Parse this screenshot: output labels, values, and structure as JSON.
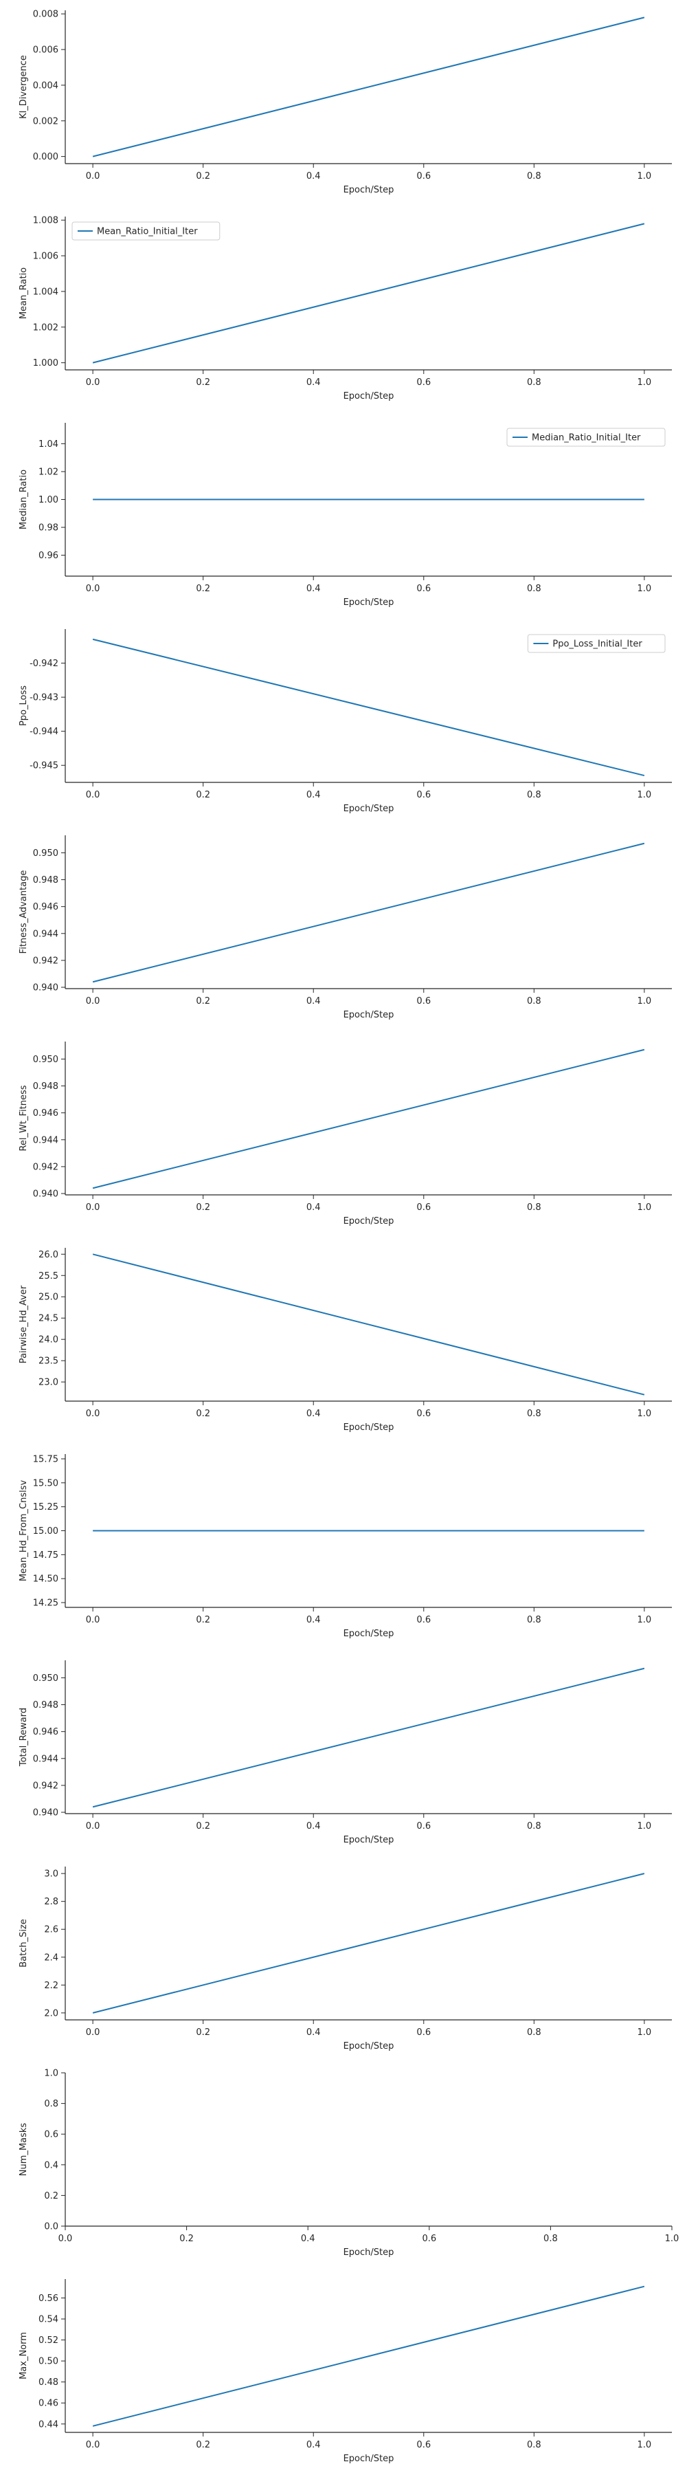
{
  "style": {
    "line_color": "#1f77b4",
    "axis_color": "#262626",
    "background": "#ffffff"
  },
  "chart_data": [
    {
      "type": "line",
      "ylabel": "Kl_Divergence",
      "xlabel": "Epoch/Step",
      "xlim": [
        -0.05,
        1.05
      ],
      "ylim": [
        -0.0004,
        0.0082
      ],
      "xticks": [
        "0.0",
        "0.2",
        "0.4",
        "0.6",
        "0.8",
        "1.0"
      ],
      "xtick_values": [
        0,
        0.2,
        0.4,
        0.6,
        0.8,
        1.0
      ],
      "yticks": [
        "0.000",
        "0.002",
        "0.004",
        "0.006",
        "0.008"
      ],
      "ytick_values": [
        0,
        0.002,
        0.004,
        0.006,
        0.008
      ],
      "series": [
        {
          "x": [
            0,
            1
          ],
          "values": [
            0.0,
            0.0078
          ]
        }
      ],
      "grid": false
    },
    {
      "type": "line",
      "ylabel": "Mean_Ratio",
      "xlabel": "Epoch/Step",
      "xlim": [
        -0.05,
        1.05
      ],
      "ylim": [
        0.9996,
        1.0082
      ],
      "xticks": [
        "0.0",
        "0.2",
        "0.4",
        "0.6",
        "0.8",
        "1.0"
      ],
      "xtick_values": [
        0,
        0.2,
        0.4,
        0.6,
        0.8,
        1.0
      ],
      "yticks": [
        "1.000",
        "1.002",
        "1.004",
        "1.006",
        "1.008"
      ],
      "ytick_values": [
        1.0,
        1.002,
        1.004,
        1.006,
        1.008
      ],
      "series": [
        {
          "name": "Mean_Ratio_Initial_Iter",
          "x": [
            0,
            1
          ],
          "values": [
            1.0,
            1.0078
          ]
        }
      ],
      "legend": "top-left",
      "grid": false
    },
    {
      "type": "line",
      "ylabel": "Median_Ratio",
      "xlabel": "Epoch/Step",
      "xlim": [
        -0.05,
        1.05
      ],
      "ylim": [
        0.945,
        1.055
      ],
      "xticks": [
        "0.0",
        "0.2",
        "0.4",
        "0.6",
        "0.8",
        "1.0"
      ],
      "xtick_values": [
        0,
        0.2,
        0.4,
        0.6,
        0.8,
        1.0
      ],
      "yticks": [
        "0.96",
        "0.98",
        "1.00",
        "1.02",
        "1.04"
      ],
      "ytick_values": [
        0.96,
        0.98,
        1.0,
        1.02,
        1.04
      ],
      "series": [
        {
          "name": "Median_Ratio_Initial_Iter",
          "x": [
            0,
            1
          ],
          "values": [
            1.0,
            1.0
          ]
        }
      ],
      "legend": "top-right",
      "grid": false
    },
    {
      "type": "line",
      "ylabel": "Ppo_Loss",
      "xlabel": "Epoch/Step",
      "xlim": [
        -0.05,
        1.05
      ],
      "ylim": [
        -0.9455,
        -0.941
      ],
      "xticks": [
        "0.0",
        "0.2",
        "0.4",
        "0.6",
        "0.8",
        "1.0"
      ],
      "xtick_values": [
        0,
        0.2,
        0.4,
        0.6,
        0.8,
        1.0
      ],
      "yticks": [
        "-0.942",
        "-0.943",
        "-0.944",
        "-0.945"
      ],
      "ytick_values": [
        -0.942,
        -0.943,
        -0.944,
        -0.945
      ],
      "series": [
        {
          "name": "Ppo_Loss_Initial_Iter",
          "x": [
            0,
            1
          ],
          "values": [
            -0.9413,
            -0.9453
          ]
        }
      ],
      "legend": "top-right",
      "grid": false
    },
    {
      "type": "line",
      "ylabel": "Fitness_Advantage",
      "xlabel": "Epoch/Step",
      "xlim": [
        -0.05,
        1.05
      ],
      "ylim": [
        0.9399,
        0.9513
      ],
      "xticks": [
        "0.0",
        "0.2",
        "0.4",
        "0.6",
        "0.8",
        "1.0"
      ],
      "xtick_values": [
        0,
        0.2,
        0.4,
        0.6,
        0.8,
        1.0
      ],
      "yticks": [
        "0.940",
        "0.942",
        "0.944",
        "0.946",
        "0.948",
        "0.950"
      ],
      "ytick_values": [
        0.94,
        0.942,
        0.944,
        0.946,
        0.948,
        0.95
      ],
      "series": [
        {
          "x": [
            0,
            1
          ],
          "values": [
            0.9404,
            0.9507
          ]
        }
      ],
      "grid": false
    },
    {
      "type": "line",
      "ylabel": "Rel_Wt_Fitness",
      "xlabel": "Epoch/Step",
      "xlim": [
        -0.05,
        1.05
      ],
      "ylim": [
        0.9399,
        0.9513
      ],
      "xticks": [
        "0.0",
        "0.2",
        "0.4",
        "0.6",
        "0.8",
        "1.0"
      ],
      "xtick_values": [
        0,
        0.2,
        0.4,
        0.6,
        0.8,
        1.0
      ],
      "yticks": [
        "0.940",
        "0.942",
        "0.944",
        "0.946",
        "0.948",
        "0.950"
      ],
      "ytick_values": [
        0.94,
        0.942,
        0.944,
        0.946,
        0.948,
        0.95
      ],
      "series": [
        {
          "x": [
            0,
            1
          ],
          "values": [
            0.9404,
            0.9507
          ]
        }
      ],
      "grid": false
    },
    {
      "type": "line",
      "ylabel": "Pairwise_Hd_Aver",
      "xlabel": "Epoch/Step",
      "xlim": [
        -0.05,
        1.05
      ],
      "ylim": [
        22.55,
        26.15
      ],
      "xticks": [
        "0.0",
        "0.2",
        "0.4",
        "0.6",
        "0.8",
        "1.0"
      ],
      "xtick_values": [
        0,
        0.2,
        0.4,
        0.6,
        0.8,
        1.0
      ],
      "yticks": [
        "23.0",
        "23.5",
        "24.0",
        "24.5",
        "25.0",
        "25.5",
        "26.0"
      ],
      "ytick_values": [
        23.0,
        23.5,
        24.0,
        24.5,
        25.0,
        25.5,
        26.0
      ],
      "series": [
        {
          "x": [
            0,
            1
          ],
          "values": [
            26.0,
            22.7
          ]
        }
      ],
      "grid": false
    },
    {
      "type": "line",
      "ylabel": "Mean_Hd_From_Cnslsv",
      "xlabel": "Epoch/Step",
      "xlim": [
        -0.05,
        1.05
      ],
      "ylim": [
        14.2,
        15.8
      ],
      "xticks": [
        "0.0",
        "0.2",
        "0.4",
        "0.6",
        "0.8",
        "1.0"
      ],
      "xtick_values": [
        0,
        0.2,
        0.4,
        0.6,
        0.8,
        1.0
      ],
      "yticks": [
        "14.25",
        "14.50",
        "14.75",
        "15.00",
        "15.25",
        "15.50",
        "15.75"
      ],
      "ytick_values": [
        14.25,
        14.5,
        14.75,
        15.0,
        15.25,
        15.5,
        15.75
      ],
      "series": [
        {
          "x": [
            0,
            1
          ],
          "values": [
            15.0,
            15.0
          ]
        }
      ],
      "grid": false
    },
    {
      "type": "line",
      "ylabel": "Total_Reward",
      "xlabel": "Epoch/Step",
      "xlim": [
        -0.05,
        1.05
      ],
      "ylim": [
        0.9399,
        0.9513
      ],
      "xticks": [
        "0.0",
        "0.2",
        "0.4",
        "0.6",
        "0.8",
        "1.0"
      ],
      "xtick_values": [
        0,
        0.2,
        0.4,
        0.6,
        0.8,
        1.0
      ],
      "yticks": [
        "0.940",
        "0.942",
        "0.944",
        "0.946",
        "0.948",
        "0.950"
      ],
      "ytick_values": [
        0.94,
        0.942,
        0.944,
        0.946,
        0.948,
        0.95
      ],
      "series": [
        {
          "x": [
            0,
            1
          ],
          "values": [
            0.9404,
            0.9507
          ]
        }
      ],
      "grid": false
    },
    {
      "type": "line",
      "ylabel": "Batch_Size",
      "xlabel": "Epoch/Step",
      "xlim": [
        -0.05,
        1.05
      ],
      "ylim": [
        1.95,
        3.05
      ],
      "xticks": [
        "0.0",
        "0.2",
        "0.4",
        "0.6",
        "0.8",
        "1.0"
      ],
      "xtick_values": [
        0,
        0.2,
        0.4,
        0.6,
        0.8,
        1.0
      ],
      "yticks": [
        "2.0",
        "2.2",
        "2.4",
        "2.6",
        "2.8",
        "3.0"
      ],
      "ytick_values": [
        2.0,
        2.2,
        2.4,
        2.6,
        2.8,
        3.0
      ],
      "series": [
        {
          "x": [
            0,
            1
          ],
          "values": [
            2.0,
            3.0
          ]
        }
      ],
      "grid": false
    },
    {
      "type": "line",
      "ylabel": "Num_Masks",
      "xlabel": "Epoch/Step",
      "xlim": [
        0,
        1
      ],
      "ylim": [
        0,
        1
      ],
      "xticks": [
        "0.0",
        "0.2",
        "0.4",
        "0.6",
        "0.8",
        "1.0"
      ],
      "xtick_values": [
        0,
        0.2,
        0.4,
        0.6,
        0.8,
        1.0
      ],
      "yticks": [
        "0.0",
        "0.2",
        "0.4",
        "0.6",
        "0.8",
        "1.0"
      ],
      "ytick_values": [
        0,
        0.2,
        0.4,
        0.6,
        0.8,
        1.0
      ],
      "series": [],
      "grid": false
    },
    {
      "type": "line",
      "ylabel": "Max_Norm",
      "xlabel": "Epoch/Step",
      "xlim": [
        -0.05,
        1.05
      ],
      "ylim": [
        0.432,
        0.578
      ],
      "xticks": [
        "0.0",
        "0.2",
        "0.4",
        "0.6",
        "0.8",
        "1.0"
      ],
      "xtick_values": [
        0,
        0.2,
        0.4,
        0.6,
        0.8,
        1.0
      ],
      "yticks": [
        "0.44",
        "0.46",
        "0.48",
        "0.50",
        "0.52",
        "0.54",
        "0.56"
      ],
      "ytick_values": [
        0.44,
        0.46,
        0.48,
        0.5,
        0.52,
        0.54,
        0.56
      ],
      "series": [
        {
          "x": [
            0,
            1
          ],
          "values": [
            0.438,
            0.571
          ]
        }
      ],
      "grid": false
    }
  ]
}
